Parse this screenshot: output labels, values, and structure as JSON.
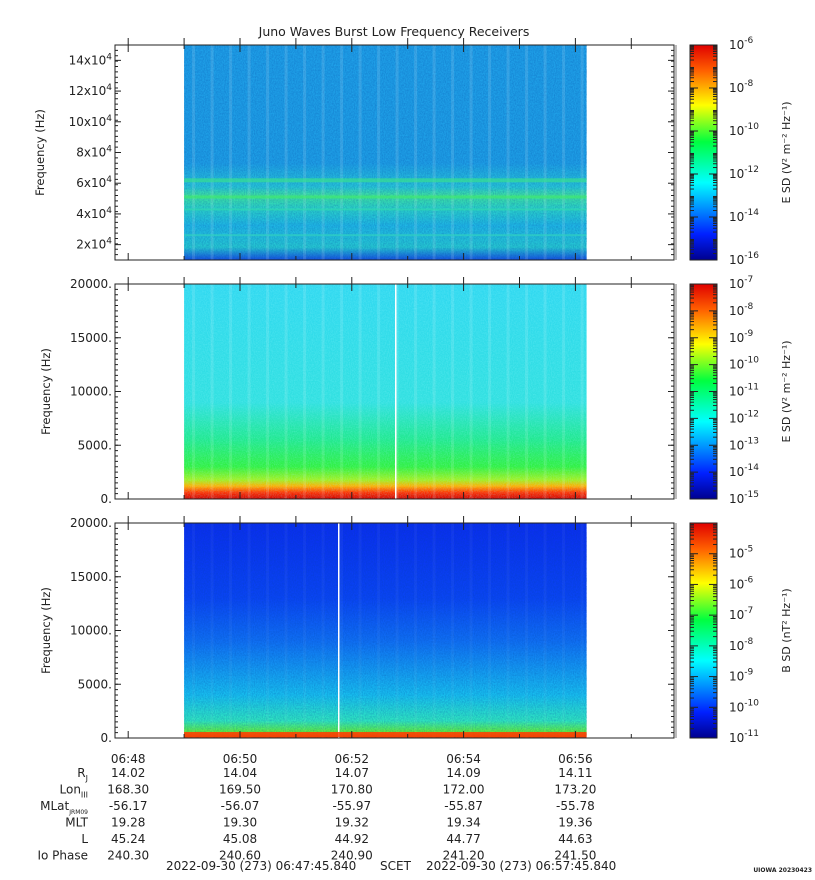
{
  "title": "Juno Waves Burst Low Frequency Receivers",
  "footer": {
    "start": "2022-09-30 (273) 06:47:45.840",
    "scet": "SCET",
    "end": "2022-09-30 (273) 06:57:45.840",
    "credit": "UIOWA 20230423"
  },
  "chart_data": [
    {
      "type": "heatmap",
      "title": "Juno Waves Burst Low Frequency Receivers",
      "ylabel": "Frequency (Hz)",
      "ylim": [
        10000,
        150000
      ],
      "yticks": [
        {
          "value": 20000,
          "mant": "2x10",
          "exp": "4"
        },
        {
          "value": 40000,
          "mant": "4x10",
          "exp": "4"
        },
        {
          "value": 60000,
          "mant": "6x10",
          "exp": "4"
        },
        {
          "value": 80000,
          "mant": "8x10",
          "exp": "4"
        },
        {
          "value": 100000,
          "mant": "10x10",
          "exp": "4"
        },
        {
          "value": 120000,
          "mant": "12x10",
          "exp": "4"
        },
        {
          "value": 140000,
          "mant": "14x10",
          "exp": "4"
        }
      ],
      "data_span": [
        "06:49:00",
        "06:56:12"
      ],
      "colorbar": {
        "label": "E SD (V² m⁻² Hz⁻¹)",
        "range_exp": [
          -16,
          -6
        ],
        "ticks": [
          "-6",
          "-8",
          "-10",
          "-12",
          "-14",
          "-16"
        ]
      }
    },
    {
      "type": "heatmap",
      "ylabel": "Frequency (Hz)",
      "ylim": [
        0,
        20000
      ],
      "yticks": [
        {
          "value": 0,
          "label": "0."
        },
        {
          "value": 5000,
          "label": "5000."
        },
        {
          "value": 10000,
          "label": "10000."
        },
        {
          "value": 15000,
          "label": "15000."
        },
        {
          "value": 20000,
          "label": "20000."
        }
      ],
      "data_span": [
        "06:49:00",
        "06:56:12"
      ],
      "colorbar": {
        "label": "E SD (V² m⁻² Hz⁻¹)",
        "range_exp": [
          -15,
          -7
        ],
        "ticks": [
          "-7",
          "-8",
          "-9",
          "-10",
          "-11",
          "-12",
          "-13",
          "-14",
          "-15"
        ]
      }
    },
    {
      "type": "heatmap",
      "ylabel": "Frequency (Hz)",
      "ylim": [
        0,
        20000
      ],
      "yticks": [
        {
          "value": 0,
          "label": "0."
        },
        {
          "value": 5000,
          "label": "5000."
        },
        {
          "value": 10000,
          "label": "10000."
        },
        {
          "value": 15000,
          "label": "15000."
        },
        {
          "value": 20000,
          "label": "20000."
        }
      ],
      "data_span": [
        "06:49:00",
        "06:56:12"
      ],
      "colorbar": {
        "label": "B SD (nT² Hz⁻¹)",
        "range_exp": [
          -11,
          -4
        ],
        "ticks": [
          "-5",
          "-6",
          "-7",
          "-8",
          "-9",
          "-10",
          "-11"
        ]
      }
    }
  ],
  "time_axis": {
    "range": [
      "06:47:45.840",
      "06:57:45.840"
    ],
    "ticks": [
      "06:48",
      "06:50",
      "06:52",
      "06:54",
      "06:56"
    ]
  },
  "ephemeris": {
    "rows": [
      {
        "label": "R",
        "sub": "J",
        "values": [
          "14.02",
          "14.04",
          "14.07",
          "14.09",
          "14.11"
        ]
      },
      {
        "label": "Lon",
        "sub": "III",
        "values": [
          "168.30",
          "169.50",
          "170.80",
          "172.00",
          "173.20"
        ]
      },
      {
        "label": "MLat",
        "sub": "JRM09",
        "values": [
          "-56.17",
          "-56.07",
          "-55.97",
          "-55.87",
          "-55.78"
        ]
      },
      {
        "label": "MLT",
        "sub": "",
        "values": [
          "19.28",
          "19.30",
          "19.32",
          "19.34",
          "19.36"
        ]
      },
      {
        "label": "L",
        "sub": "",
        "values": [
          "45.24",
          "45.08",
          "44.92",
          "44.77",
          "44.63"
        ]
      },
      {
        "label": "Io Phase",
        "sub": "",
        "values": [
          "240.30",
          "240.60",
          "240.90",
          "241.20",
          "241.50"
        ]
      }
    ]
  }
}
